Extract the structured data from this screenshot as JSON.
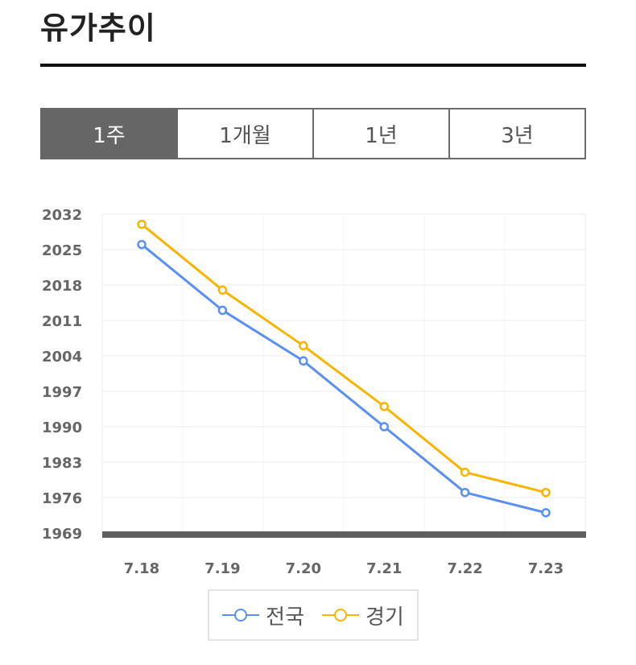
{
  "header": {
    "title": "유가추이"
  },
  "tabs": [
    {
      "label": "1주",
      "active": true
    },
    {
      "label": "1개월",
      "active": false
    },
    {
      "label": "1년",
      "active": false
    },
    {
      "label": "3년",
      "active": false
    }
  ],
  "chart_data": {
    "type": "line",
    "categories": [
      "7.18",
      "7.19",
      "7.20",
      "7.21",
      "7.22",
      "7.23"
    ],
    "series": [
      {
        "name": "전국",
        "color": "#5b8ff0",
        "values": [
          2026,
          2013,
          2003,
          1990,
          1977,
          1973
        ]
      },
      {
        "name": "경기",
        "color": "#f7b500",
        "values": [
          2030,
          2017,
          2006,
          1994,
          1981,
          1977
        ]
      }
    ],
    "yticks": [
      1969,
      1976,
      1983,
      1990,
      1997,
      2004,
      2011,
      2018,
      2025,
      2032
    ],
    "ylim": [
      1969,
      2032
    ],
    "grid": true,
    "legend_position": "bottom"
  }
}
